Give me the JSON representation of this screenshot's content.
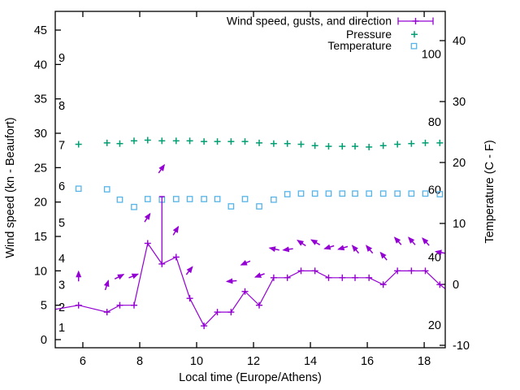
{
  "chart_data": {
    "type": "line",
    "title": "Wind speed, gusts, and direction",
    "xlabel": "Local time (Europe/Athens)",
    "ylabel": "Wind speed (kn - Beaufort)",
    "y2label": "Temperature (C - F)",
    "legend": [
      "Wind speed, gusts, and direction",
      "Pressure",
      "Temperature"
    ],
    "legend_position": "top-right-inside",
    "grid": false,
    "x_range": [
      5.03,
      18.74
    ],
    "x_ticks": [
      6,
      8,
      10,
      12,
      14,
      16,
      18
    ],
    "y_left": {
      "unit": "kn",
      "ticks": [
        0,
        5,
        10,
        15,
        20,
        25,
        30,
        35,
        40,
        45
      ],
      "range": [
        -1.18,
        47.72
      ]
    },
    "y_right": {
      "unit": "C",
      "ticks": [
        -10,
        0,
        10,
        20,
        30,
        40
      ],
      "range": [
        -10.4,
        44.8
      ]
    },
    "beaufort_labels": [
      {
        "n": "1",
        "kn": 1.8
      },
      {
        "n": "2",
        "kn": 4.7
      },
      {
        "n": "3",
        "kn": 8.0
      },
      {
        "n": "4",
        "kn": 11.8
      },
      {
        "n": "5",
        "kn": 17.0
      },
      {
        "n": "6",
        "kn": 22.3
      },
      {
        "n": "7",
        "kn": 28.3
      },
      {
        "n": "8",
        "kn": 34.0
      },
      {
        "n": "9",
        "kn": 41.0
      }
    ],
    "fahrenheit_labels": [
      20,
      40,
      60,
      80,
      100
    ],
    "colors": {
      "wind": "#9400d3",
      "pressure": "#009e73",
      "temperature": "#56b4e9",
      "axis": "#000000"
    },
    "times": [
      5.85,
      6.85,
      7.3,
      7.8,
      8.28,
      8.78,
      9.28,
      9.76,
      10.26,
      10.73,
      11.21,
      11.7,
      12.2,
      12.71,
      13.19,
      13.67,
      14.16,
      14.64,
      15.12,
      15.57,
      16.06,
      16.56,
      17.06,
      17.55,
      18.04,
      18.55
    ],
    "wind_kn": [
      5,
      4,
      5,
      5,
      14,
      11,
      12,
      6,
      2,
      4,
      4,
      7,
      5,
      9,
      9,
      10,
      10,
      9,
      9,
      9,
      9,
      8,
      10,
      10,
      10,
      8
    ],
    "wind_edge_points": [
      {
        "t": 5.03,
        "kn": 4.4
      },
      {
        "t": 18.74,
        "kn": 7.4
      }
    ],
    "gusts": [
      {
        "t": 8.78,
        "from": 11,
        "to": 20.8
      }
    ],
    "pressure_kn": [
      28.4,
      28.6,
      28.5,
      28.9,
      29.0,
      28.9,
      28.9,
      28.9,
      28.8,
      28.8,
      28.8,
      28.8,
      28.6,
      28.5,
      28.5,
      28.4,
      28.2,
      28.1,
      28.1,
      28.1,
      28.0,
      28.2,
      28.4,
      28.5,
      28.6,
      28.6
    ],
    "temperature_c": [
      15.7,
      15.6,
      13.9,
      12.7,
      14.0,
      13.9,
      14.0,
      14.0,
      14.0,
      14.0,
      12.8,
      14.0,
      12.8,
      13.9,
      14.8,
      14.9,
      14.9,
      14.9,
      14.9,
      14.9,
      14.9,
      14.9,
      14.9,
      14.9,
      14.9,
      14.8
    ],
    "arrows": [
      {
        "t": 5.85,
        "kn": 9.3,
        "deg": 0
      },
      {
        "t": 6.85,
        "kn": 8.0,
        "deg": 18
      },
      {
        "t": 7.3,
        "kn": 9.2,
        "deg": 63
      },
      {
        "t": 7.8,
        "kn": 9.3,
        "deg": 68
      },
      {
        "t": 8.28,
        "kn": 17.8,
        "deg": 33
      },
      {
        "t": 8.78,
        "kn": 24.9,
        "deg": 35
      },
      {
        "t": 9.28,
        "kn": 15.9,
        "deg": 31
      },
      {
        "t": 9.76,
        "kn": 10.1,
        "deg": 38
      },
      {
        "t": 11.21,
        "kn": 8.5,
        "deg": 266
      },
      {
        "t": 11.7,
        "kn": 11.1,
        "deg": 247
      },
      {
        "t": 12.2,
        "kn": 9.3,
        "deg": 250
      },
      {
        "t": 12.71,
        "kn": 13.2,
        "deg": 282
      },
      {
        "t": 13.19,
        "kn": 13.1,
        "deg": 262
      },
      {
        "t": 13.67,
        "kn": 14.1,
        "deg": 304
      },
      {
        "t": 14.16,
        "kn": 14.2,
        "deg": 300
      },
      {
        "t": 14.64,
        "kn": 13.4,
        "deg": 253
      },
      {
        "t": 15.12,
        "kn": 13.3,
        "deg": 253
      },
      {
        "t": 15.57,
        "kn": 13.2,
        "deg": 320
      },
      {
        "t": 16.06,
        "kn": 13.2,
        "deg": 320
      },
      {
        "t": 16.56,
        "kn": 12.2,
        "deg": 320
      },
      {
        "t": 17.06,
        "kn": 14.4,
        "deg": 318
      },
      {
        "t": 17.55,
        "kn": 14.4,
        "deg": 318
      },
      {
        "t": 18.04,
        "kn": 14.3,
        "deg": 318
      },
      {
        "t": 18.55,
        "kn": 12.7,
        "deg": 280
      }
    ]
  }
}
